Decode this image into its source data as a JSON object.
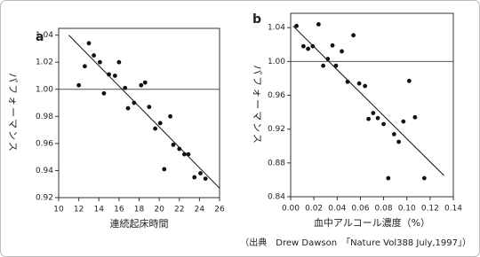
{
  "chart_data": [
    {
      "type": "scatter",
      "panel_label": "a",
      "x_label": "連続起床時間",
      "y_label": "パフォーマンス",
      "x": [
        12.0,
        12.6,
        13.0,
        13.5,
        14.1,
        14.5,
        15.0,
        15.6,
        16.0,
        16.6,
        16.9,
        17.5,
        18.2,
        18.6,
        19.0,
        19.6,
        20.1,
        20.5,
        21.1,
        21.4,
        22.0,
        22.5,
        22.9,
        23.5,
        24.1,
        24.6
      ],
      "values": [
        1.003,
        1.017,
        1.034,
        1.025,
        1.02,
        0.997,
        1.011,
        1.01,
        1.02,
        1.001,
        0.986,
        0.99,
        1.003,
        1.005,
        0.987,
        0.971,
        0.975,
        0.941,
        0.98,
        0.959,
        0.956,
        0.952,
        0.952,
        0.935,
        0.938,
        0.934
      ],
      "color": "#111111",
      "trendline": {
        "x": [
          11.0,
          26.0
        ],
        "y": [
          1.04,
          0.927
        ]
      },
      "reference_line": 1,
      "xlim": [
        10,
        26
      ],
      "xticks": [
        10,
        12,
        14,
        16,
        18,
        20,
        22,
        24,
        26
      ],
      "ylim": [
        0.92,
        1.045
      ],
      "yticks": [
        0.92,
        0.94,
        0.96,
        0.98,
        {
          "value": 1,
          "label": "1.00"
        },
        1.02,
        1.04
      ]
    },
    {
      "type": "scatter",
      "panel_label": "b",
      "x_label": "血中アルコール濃度（%）",
      "y_label": "パフォーマンス",
      "x": [
        0.005,
        0.011,
        0.015,
        0.019,
        0.024,
        0.028,
        0.032,
        0.036,
        0.039,
        0.044,
        0.049,
        0.054,
        0.059,
        0.064,
        0.067,
        0.071,
        0.075,
        0.08,
        0.084,
        0.089,
        0.093,
        0.097,
        0.102,
        0.107,
        0.115
      ],
      "values": [
        1.042,
        1.018,
        1.015,
        1.018,
        1.044,
        0.995,
        1.003,
        1.019,
        0.995,
        1.012,
        0.976,
        1.031,
        0.974,
        0.971,
        0.932,
        0.939,
        0.933,
        0.926,
        0.862,
        0.914,
        0.905,
        0.929,
        0.977,
        0.934,
        0.862
      ],
      "color": "#111111",
      "trendline": {
        "x": [
          0.002,
          0.132
        ],
        "y": [
          1.042,
          0.865
        ]
      },
      "reference_line": 1,
      "xlim": [
        0,
        0.14
      ],
      "xticks": [
        {
          "value": 0,
          "label": "0.00"
        },
        0.02,
        0.04,
        0.06,
        0.08,
        {
          "value": 0.1,
          "label": "0.10"
        },
        0.12,
        0.14
      ],
      "ylim": [
        0.84,
        1.057
      ],
      "yticks": [
        0.84,
        0.88,
        0.92,
        0.96,
        {
          "value": 1,
          "label": "1.00"
        },
        1.04
      ]
    }
  ],
  "source": "（出典　Drew Dawson　「Nature Vol388 July,1997」）"
}
